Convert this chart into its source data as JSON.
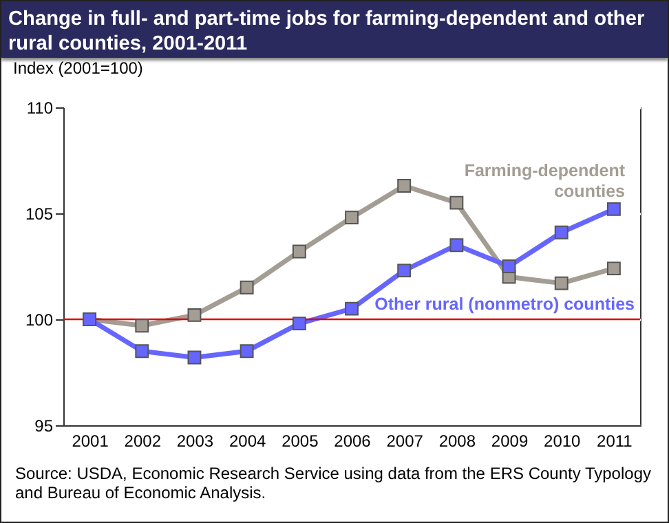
{
  "chart_data": {
    "type": "line",
    "title": "Change in full- and part-time jobs for farming-dependent and other rural counties, 2001-2011",
    "ylabel": "Index (2001=100)",
    "categories": [
      "2001",
      "2002",
      "2003",
      "2004",
      "2005",
      "2006",
      "2007",
      "2008",
      "2009",
      "2010",
      "2011"
    ],
    "series": [
      {
        "name": "Farming-dependent counties",
        "color": "#a39d94",
        "values": [
          100,
          99.7,
          100.2,
          101.5,
          103.2,
          104.8,
          106.3,
          105.5,
          102.0,
          101.7,
          102.4
        ]
      },
      {
        "name": "Other rural (nonmetro) counties",
        "color": "#6666ff",
        "values": [
          100,
          98.5,
          98.2,
          98.5,
          99.8,
          100.5,
          102.3,
          103.5,
          102.5,
          104.1,
          105.2
        ]
      }
    ],
    "ylim": [
      95,
      110
    ],
    "yticks": [
      95,
      100,
      105,
      110
    ],
    "grid": "y",
    "marker": "square",
    "line_style": "solid",
    "ref_lines": [
      {
        "axis": "y",
        "value": 100,
        "color": "#e00000"
      }
    ],
    "annotations": [
      "Source: USDA, Economic Research Service using data from the ERS County Typology and Bureau of Economic Analysis."
    ]
  }
}
